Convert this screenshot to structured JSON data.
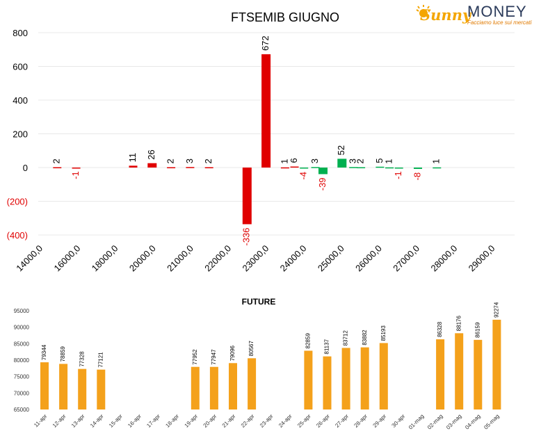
{
  "logo": {
    "text_part1": "Sunny",
    "text_part2": "MONEY",
    "tagline": "Facciamo luce sui mercati"
  },
  "colors": {
    "negative": "#e00000",
    "positive": "#00b050",
    "future": "#f4a11b",
    "grid": "#e8e8e8",
    "text": "#000000",
    "axis_text": "#333333"
  },
  "chart_data": [
    {
      "type": "bar",
      "title": "FTSEMIB GIUGNO",
      "xlabel": "",
      "ylabel": "",
      "ylim": [
        -400,
        800
      ],
      "y_ticks": [
        {
          "value": 800,
          "label": "800",
          "negative": false
        },
        {
          "value": 600,
          "label": "600",
          "negative": false
        },
        {
          "value": 400,
          "label": "400",
          "negative": false
        },
        {
          "value": 200,
          "label": "200",
          "negative": false
        },
        {
          "value": 0,
          "label": "0",
          "negative": false
        },
        {
          "value": -200,
          "label": "(200)",
          "negative": true
        },
        {
          "value": -400,
          "label": "(400)",
          "negative": true
        }
      ],
      "x_tick_labels": [
        "14000,0",
        "16000,0",
        "18000,0",
        "20000,0",
        "21000,0",
        "22000,0",
        "23000,0",
        "24000,0",
        "25000,0",
        "26000,0",
        "27000,0",
        "28000,0",
        "29000,0"
      ],
      "grid": true,
      "bars": [
        {
          "slot": 1,
          "value": 2,
          "label": "2",
          "color": "red"
        },
        {
          "slot": 2,
          "value": -1,
          "label": "-1",
          "color": "red"
        },
        {
          "slot": 5,
          "value": 11,
          "label": "11",
          "color": "red"
        },
        {
          "slot": 6,
          "value": 26,
          "label": "26",
          "color": "red"
        },
        {
          "slot": 7,
          "value": 2,
          "label": "2",
          "color": "red"
        },
        {
          "slot": 8,
          "value": 3,
          "label": "3",
          "color": "red"
        },
        {
          "slot": 9,
          "value": 2,
          "label": "2",
          "color": "red"
        },
        {
          "slot": 11,
          "value": -336,
          "label": "-336",
          "color": "red"
        },
        {
          "slot": 12,
          "value": 672,
          "label": "672",
          "color": "red"
        },
        {
          "slot": 13,
          "value": 1,
          "label": "1",
          "color": "red"
        },
        {
          "slot": 13.5,
          "value": 6,
          "label": "6",
          "color": "red"
        },
        {
          "slot": 14,
          "value": -4,
          "label": "-4",
          "color": "green"
        },
        {
          "slot": 14.6,
          "value": 3,
          "label": "3",
          "color": "green"
        },
        {
          "slot": 15,
          "value": -39,
          "label": "-39",
          "color": "green"
        },
        {
          "slot": 16,
          "value": 52,
          "label": "52",
          "color": "green"
        },
        {
          "slot": 16.6,
          "value": 3,
          "label": "3",
          "color": "green"
        },
        {
          "slot": 17,
          "value": 2,
          "label": "2",
          "color": "green"
        },
        {
          "slot": 18,
          "value": 5,
          "label": "5",
          "color": "green"
        },
        {
          "slot": 18.5,
          "value": 1,
          "label": "1",
          "color": "green"
        },
        {
          "slot": 19,
          "value": -1,
          "label": "-1",
          "color": "green"
        },
        {
          "slot": 20,
          "value": -8,
          "label": "-8",
          "color": "green"
        },
        {
          "slot": 21,
          "value": 1,
          "label": "1",
          "color": "green"
        }
      ]
    },
    {
      "type": "bar",
      "title": "FUTURE",
      "xlabel": "",
      "ylabel": "",
      "ylim": [
        65000,
        95000
      ],
      "y_ticks": [
        95000,
        90000,
        85000,
        80000,
        75000,
        70000,
        65000
      ],
      "grid": false,
      "categories": [
        "11-apr",
        "12-apr",
        "13-apr",
        "14-apr",
        "15-apr",
        "16-apr",
        "17-apr",
        "18-apr",
        "19-apr",
        "20-apr",
        "21-apr",
        "22-apr",
        "23-apr",
        "24-apr",
        "25-apr",
        "26-apr",
        "27-apr",
        "28-apr",
        "29-apr",
        "30-apr",
        "01-mag",
        "02-mag",
        "03-mag",
        "04-mag",
        "05-mag"
      ],
      "values": [
        79344,
        78859,
        77328,
        77121,
        null,
        null,
        null,
        null,
        77952,
        77947,
        79096,
        80567,
        null,
        null,
        82859,
        81137,
        83712,
        83882,
        85193,
        null,
        null,
        86328,
        88176,
        86159,
        92274
      ],
      "value_labels": [
        "79344",
        "78859",
        "77328",
        "77121",
        "",
        "",
        "",
        "",
        "77952",
        "77947",
        "79096",
        "80567",
        "",
        "",
        "82859",
        "81137",
        "83712",
        "83882",
        "85193",
        "",
        "",
        "86328",
        "88176",
        "86159",
        "92274"
      ]
    }
  ]
}
